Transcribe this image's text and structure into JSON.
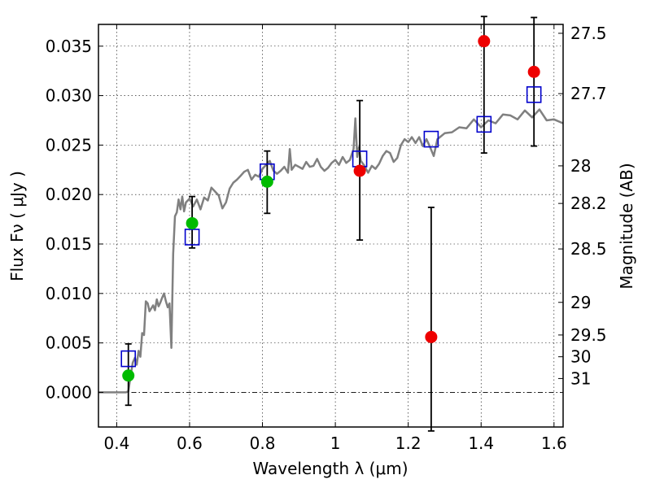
{
  "chart_data": {
    "type": "scatter",
    "xlabel": "Wavelength  λ (μm)",
    "ylabel": "Flux  Fν  ( μJy )",
    "y2label": "Magnitude (AB)",
    "xlim": [
      0.35,
      1.625
    ],
    "ylim": [
      -0.0035,
      0.0372
    ],
    "grid": true,
    "x_ticks": [
      {
        "value": 0.4,
        "label": "0.4"
      },
      {
        "value": 0.6,
        "label": "0.6"
      },
      {
        "value": 0.8,
        "label": "0.8"
      },
      {
        "value": 1.0,
        "label": "1"
      },
      {
        "value": 1.2,
        "label": "1.2"
      },
      {
        "value": 1.4,
        "label": "1.4"
      },
      {
        "value": 1.6,
        "label": "1.6"
      }
    ],
    "y_ticks": [
      {
        "value": 0.0,
        "label": "0.000"
      },
      {
        "value": 0.005,
        "label": "0.005"
      },
      {
        "value": 0.01,
        "label": "0.010"
      },
      {
        "value": 0.015,
        "label": "0.015"
      },
      {
        "value": 0.02,
        "label": "0.020"
      },
      {
        "value": 0.025,
        "label": "0.025"
      },
      {
        "value": 0.03,
        "label": "0.030"
      },
      {
        "value": 0.035,
        "label": "0.035"
      }
    ],
    "y2_ticks": [
      {
        "label": "27.5",
        "flux": 0.0363
      },
      {
        "label": "27.7",
        "flux": 0.0302
      },
      {
        "label": "28",
        "flux": 0.0229
      },
      {
        "label": "28.2",
        "flux": 0.0191
      },
      {
        "label": "28.5",
        "flux": 0.0145
      },
      {
        "label": "29",
        "flux": 0.0091
      },
      {
        "label": "29.5",
        "flux": 0.0058
      },
      {
        "label": "30",
        "flux": 0.0036
      },
      {
        "label": "31",
        "flux": 0.0014
      }
    ],
    "colors": {
      "sed": "#808080",
      "model_box": "#0000cc",
      "observed_detected": "#00bb00",
      "observed_other": "#ee0000",
      "errorbar": "#000000"
    },
    "model_sed": {
      "x": [
        0.35,
        0.375,
        0.4,
        0.415,
        0.425,
        0.432,
        0.438,
        0.444,
        0.45,
        0.455,
        0.46,
        0.465,
        0.47,
        0.475,
        0.48,
        0.485,
        0.49,
        0.495,
        0.5,
        0.505,
        0.51,
        0.515,
        0.52,
        0.525,
        0.53,
        0.535,
        0.54,
        0.545,
        0.55,
        0.555,
        0.56,
        0.565,
        0.57,
        0.575,
        0.58,
        0.585,
        0.59,
        0.6,
        0.61,
        0.62,
        0.63,
        0.64,
        0.65,
        0.66,
        0.67,
        0.68,
        0.69,
        0.7,
        0.71,
        0.72,
        0.73,
        0.74,
        0.75,
        0.76,
        0.77,
        0.78,
        0.79,
        0.8,
        0.81,
        0.82,
        0.83,
        0.84,
        0.85,
        0.86,
        0.87,
        0.875,
        0.88,
        0.89,
        0.9,
        0.91,
        0.92,
        0.93,
        0.94,
        0.95,
        0.96,
        0.97,
        0.98,
        0.99,
        1.0,
        1.01,
        1.02,
        1.03,
        1.04,
        1.05,
        1.055,
        1.06,
        1.065,
        1.07,
        1.08,
        1.09,
        1.1,
        1.11,
        1.12,
        1.13,
        1.14,
        1.15,
        1.16,
        1.17,
        1.18,
        1.19,
        1.2,
        1.21,
        1.22,
        1.23,
        1.24,
        1.25,
        1.26,
        1.27,
        1.28,
        1.3,
        1.32,
        1.34,
        1.36,
        1.38,
        1.4,
        1.42,
        1.44,
        1.46,
        1.48,
        1.5,
        1.52,
        1.54,
        1.56,
        1.58,
        1.6,
        1.625
      ],
      "y": [
        0.0,
        0.0,
        0.0,
        0.0,
        0.0,
        0.0001,
        0.0016,
        0.003,
        0.0035,
        0.0028,
        0.0042,
        0.0036,
        0.006,
        0.0058,
        0.0092,
        0.009,
        0.0082,
        0.0085,
        0.0088,
        0.0083,
        0.0094,
        0.0087,
        0.0091,
        0.0096,
        0.01,
        0.0092,
        0.0086,
        0.009,
        0.0045,
        0.014,
        0.0178,
        0.0182,
        0.0195,
        0.0185,
        0.0198,
        0.0183,
        0.0192,
        0.0196,
        0.0188,
        0.0195,
        0.0185,
        0.0197,
        0.0194,
        0.0207,
        0.0203,
        0.0199,
        0.0186,
        0.0192,
        0.0206,
        0.0212,
        0.0215,
        0.0219,
        0.0223,
        0.0225,
        0.0215,
        0.022,
        0.0218,
        0.0226,
        0.023,
        0.0234,
        0.0224,
        0.0221,
        0.0224,
        0.0228,
        0.0222,
        0.0246,
        0.0225,
        0.023,
        0.0228,
        0.0226,
        0.0233,
        0.0228,
        0.0229,
        0.0236,
        0.0228,
        0.0224,
        0.0227,
        0.0232,
        0.0235,
        0.023,
        0.0238,
        0.0232,
        0.0235,
        0.0246,
        0.0277,
        0.0238,
        0.0248,
        0.0234,
        0.0229,
        0.0222,
        0.0229,
        0.0226,
        0.0231,
        0.0239,
        0.0244,
        0.0242,
        0.0233,
        0.0237,
        0.025,
        0.0256,
        0.0253,
        0.0258,
        0.0252,
        0.0258,
        0.0249,
        0.0256,
        0.0248,
        0.0239,
        0.0256,
        0.0262,
        0.0263,
        0.0268,
        0.0267,
        0.0276,
        0.0268,
        0.0275,
        0.0272,
        0.0281,
        0.028,
        0.0276,
        0.0285,
        0.0278,
        0.0286,
        0.0275,
        0.0276,
        0.0272
      ]
    },
    "model_points": {
      "x": [
        0.432,
        0.607,
        0.813,
        1.067,
        1.263,
        1.408,
        1.545
      ],
      "y": [
        0.0034,
        0.0157,
        0.0223,
        0.0236,
        0.0256,
        0.0271,
        0.0301
      ]
    },
    "observed_detected": {
      "x": [
        0.432,
        0.607,
        0.813
      ],
      "y": [
        0.0017,
        0.0171,
        0.0213
      ],
      "err_low": [
        0.003,
        0.0025,
        0.0032
      ],
      "err_high": [
        0.0032,
        0.0027,
        0.0031
      ]
    },
    "observed_other": {
      "x": [
        1.067,
        1.263,
        1.408,
        1.545
      ],
      "y": [
        0.0224,
        0.0056,
        0.0355,
        0.0324
      ],
      "err_low": [
        0.007,
        0.0095,
        0.0113,
        0.0075
      ],
      "err_high": [
        0.0071,
        0.0131,
        0.0025,
        0.0055
      ]
    }
  }
}
